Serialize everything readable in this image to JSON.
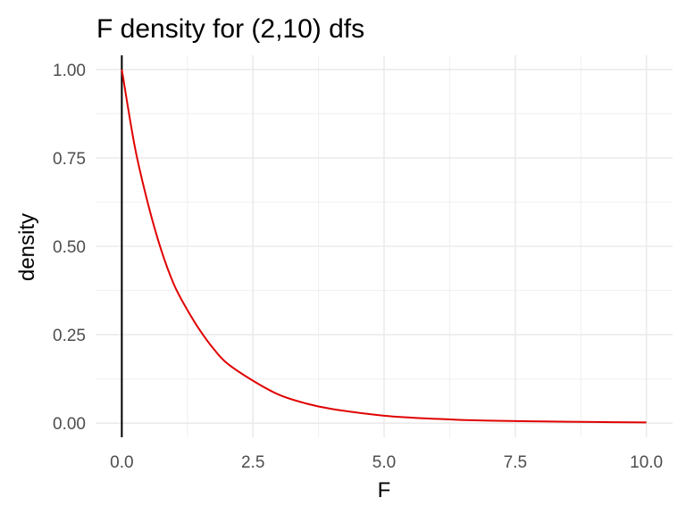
{
  "chart_data": {
    "type": "line",
    "title": "F density for (2,10) dfs",
    "xlabel": "F",
    "ylabel": "density",
    "xlim": [
      -0.5,
      10.5
    ],
    "ylim": [
      -0.04,
      1.04
    ],
    "x_ticks": [
      0.0,
      2.5,
      5.0,
      7.5,
      10.0
    ],
    "x_tick_labels": [
      "0.0",
      "2.5",
      "5.0",
      "7.5",
      "10.0"
    ],
    "y_ticks": [
      0.0,
      0.25,
      0.5,
      0.75,
      1.0
    ],
    "y_tick_labels": [
      "0.00",
      "0.25",
      "0.50",
      "0.75",
      "1.00"
    ],
    "x_minor_ticks": [
      1.25,
      3.75,
      6.25,
      8.75
    ],
    "y_minor_ticks": [
      0.125,
      0.375,
      0.625,
      0.875
    ],
    "grid": true,
    "vline_x": 0,
    "series": [
      {
        "color": "#e00000",
        "x": [
          0,
          0.25,
          0.5,
          0.75,
          1.0,
          1.25,
          1.5,
          1.75,
          2.0,
          2.5,
          3.0,
          3.5,
          4.0,
          5.0,
          6.0,
          7.0,
          8.0,
          9.0,
          10.0
        ],
        "y": [
          1.0,
          0.78,
          0.62,
          0.49,
          0.39,
          0.32,
          0.26,
          0.21,
          0.17,
          0.12,
          0.08,
          0.056,
          0.04,
          0.021,
          0.012,
          0.007,
          0.0047,
          0.0031,
          0.0021
        ]
      }
    ]
  }
}
